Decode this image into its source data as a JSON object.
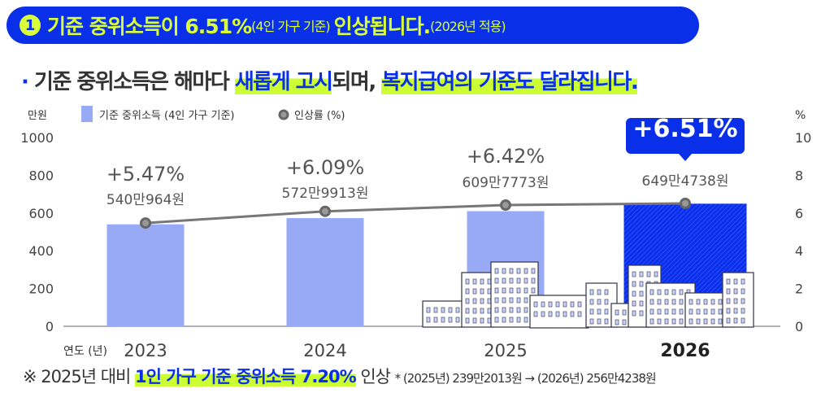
{
  "banner": {
    "number": "1",
    "main": "기준 중위소득이 6.51%",
    "paren": "(4인 가구 기준)",
    "main2": "인상됩니다.",
    "note": "(2026년 적용)"
  },
  "subtitle": {
    "bullet": "·",
    "part1": "기준 중위소득은 해마다",
    "hl1": "새롭게 고시",
    "part2": "되며,",
    "hl2": "복지급여의 기준도 달라집니다."
  },
  "colors": {
    "bar": "#98aaf5",
    "bar_highlight": "#0a2fe8",
    "line": "#777777",
    "accent": "#ccff33"
  },
  "chart_data": {
    "type": "bar+line",
    "categories": [
      "2023",
      "2024",
      "2025",
      "2026"
    ],
    "xlabel": "연도 (년)",
    "ylabel_left": "만원",
    "ylabel_right": "%",
    "ylim_left": [
      0,
      1000
    ],
    "yticks_left": [
      "0",
      "200",
      "400",
      "600",
      "800",
      "1000"
    ],
    "ylim_right": [
      0,
      10
    ],
    "yticks_right": [
      "0",
      "2",
      "4",
      "6",
      "8",
      "10"
    ],
    "legend": {
      "bar": "기준 중위소득 (4인 가구 기준)",
      "line": "인상률 (%)",
      "placement": "top-left"
    },
    "series": [
      {
        "name": "기준 중위소득 (4인 가구 기준)",
        "type": "bar",
        "values": [
          540.0964,
          572.9913,
          609.7773,
          649.4738
        ],
        "labels": [
          "540만964원",
          "572만9913원",
          "609만7773원",
          "649만4738원"
        ]
      },
      {
        "name": "인상률 (%)",
        "type": "line",
        "values": [
          5.47,
          6.09,
          6.42,
          6.51
        ],
        "labels": [
          "+5.47%",
          "+6.09%",
          "+6.42%",
          "+6.51%"
        ]
      }
    ],
    "grid": false
  },
  "footer": {
    "mark": "※ 2025년 대비",
    "hl": "1인 가구 기준 중위소득 7.20%",
    "after": "인상",
    "detail": "* (2025년) 239만2013원 → (2026년) 256만4238원"
  }
}
